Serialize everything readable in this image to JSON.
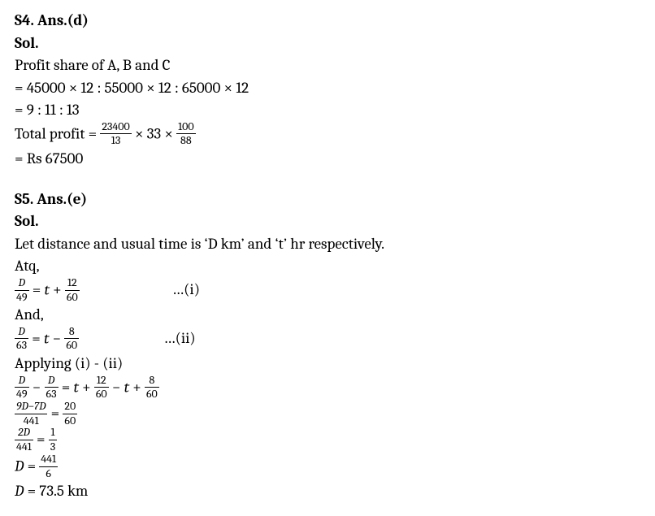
{
  "s4": {
    "heading": "S4. Ans.(d)",
    "sol_label": "Sol.",
    "l1": "Profit share of A, B and C",
    "l2": "= 45000 × 12 : 55000 × 12 : 65000 × 12",
    "l3": "= 9 : 11 : 13",
    "l4_prefix": "Total profit = ",
    "l4_frac1_num": "23400",
    "l4_frac1_den": "13",
    "l4_mid": " × 33 × ",
    "l4_frac2_num": "100",
    "l4_frac2_den": "88",
    "l5": "= Rs 67500"
  },
  "s5": {
    "heading": "S5. Ans.(e)",
    "sol_label": "Sol.",
    "l1": "Let distance and usual time is ‘D km’ and ‘t’ hr respectively.",
    "l2": "Atq,",
    "eq1_lhs_num": "D",
    "eq1_lhs_den": "49",
    "eq1_mid_a": " = ",
    "eq1_var": "t",
    "eq1_mid_b": " + ",
    "eq1_rhs_num": "12",
    "eq1_rhs_den": "60",
    "eq1_note": "…(i)",
    "l_and": "And,",
    "eq2_lhs_num": "D",
    "eq2_lhs_den": "63",
    "eq2_mid_a": " = ",
    "eq2_var": "t",
    "eq2_mid_b": " − ",
    "eq2_rhs_num": "8",
    "eq2_rhs_den": "60",
    "eq2_note": "…(ii)",
    "l_apply": "Applying (i) - (ii)",
    "eq3_a_num": "D",
    "eq3_a_den": "49",
    "eq3_minus": " − ",
    "eq3_b_num": "D",
    "eq3_b_den": "63",
    "eq3_eq": " = ",
    "eq3_t1": "t",
    "eq3_plus1": " + ",
    "eq3_c_num": "12",
    "eq3_c_den": "60",
    "eq3_minus2": " − ",
    "eq3_t2": "t",
    "eq3_plus2": " + ",
    "eq3_d_num": "8",
    "eq3_d_den": "60",
    "eq4_lhs_num": "9D−7D",
    "eq4_lhs_den": "441",
    "eq4_eq": " = ",
    "eq4_rhs_num": "20",
    "eq4_rhs_den": "60",
    "eq5_lhs_num": "2D",
    "eq5_lhs_den": "441",
    "eq5_eq": " = ",
    "eq5_rhs_num": "1",
    "eq5_rhs_den": "3",
    "eq6_var": "D",
    "eq6_eq": " = ",
    "eq6_rhs_num": "441",
    "eq6_rhs_den": "6",
    "eq7_var": "D",
    "eq7_eq": " = ",
    "eq7_val": "73.5 km"
  }
}
